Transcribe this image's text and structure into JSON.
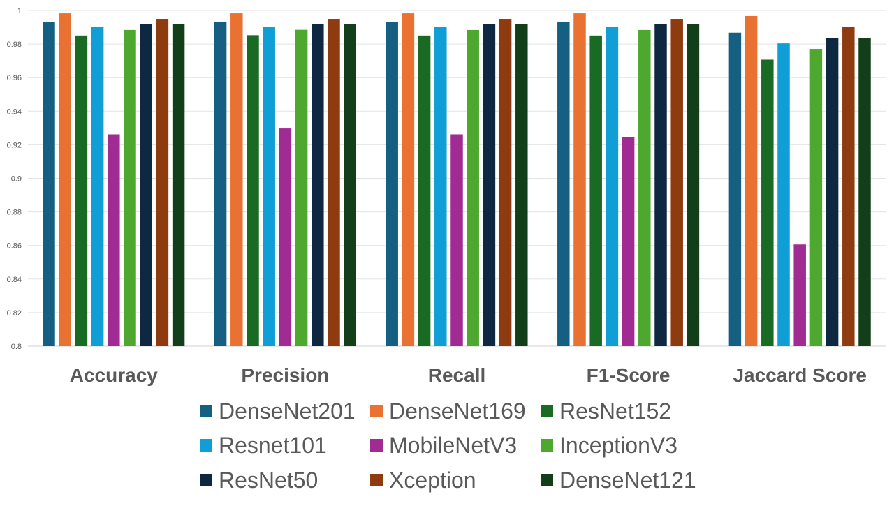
{
  "chart_data": {
    "type": "bar",
    "title": "",
    "xlabel": "",
    "ylabel": "",
    "ylim": [
      0.8,
      1.0
    ],
    "yticks": [
      "0.8",
      "0.82",
      "0.84",
      "0.86",
      "0.88",
      "0.9",
      "0.92",
      "0.94",
      "0.96",
      "0.98",
      "1"
    ],
    "grid": true,
    "legend_position": "bottom",
    "categories": [
      "Accuracy",
      "Precision",
      "Recall",
      "F1-Score",
      "Jaccard Score"
    ],
    "series": [
      {
        "name": "DenseNet201",
        "color": "#156082",
        "values": [
          0.9933,
          0.9933,
          0.9933,
          0.9933,
          0.9868
        ]
      },
      {
        "name": "DenseNet169",
        "color": "#E97132",
        "values": [
          0.9983,
          0.9983,
          0.9983,
          0.9983,
          0.9967
        ]
      },
      {
        "name": "ResNet152",
        "color": "#196B24",
        "values": [
          0.9851,
          0.9853,
          0.9851,
          0.9851,
          0.9707
        ]
      },
      {
        "name": "Resnet101",
        "color": "#0F9ED5",
        "values": [
          0.9901,
          0.9903,
          0.9901,
          0.9901,
          0.9804
        ]
      },
      {
        "name": "MobileNetV3",
        "color": "#A02B93",
        "values": [
          0.9262,
          0.9297,
          0.9262,
          0.9244,
          0.8606
        ]
      },
      {
        "name": "InceptionV3",
        "color": "#4EA72E",
        "values": [
          0.9884,
          0.9885,
          0.9884,
          0.9884,
          0.9771
        ]
      },
      {
        "name": "ResNet50",
        "color": "#0E2841",
        "values": [
          0.9917,
          0.9917,
          0.9917,
          0.9917,
          0.9836
        ]
      },
      {
        "name": "Xception",
        "color": "#8F3B10",
        "values": [
          0.995,
          0.995,
          0.995,
          0.995,
          0.9901
        ]
      },
      {
        "name": "DenseNet121",
        "color": "#123F1A",
        "values": [
          0.9917,
          0.9917,
          0.9917,
          0.9917,
          0.9836
        ]
      }
    ]
  }
}
